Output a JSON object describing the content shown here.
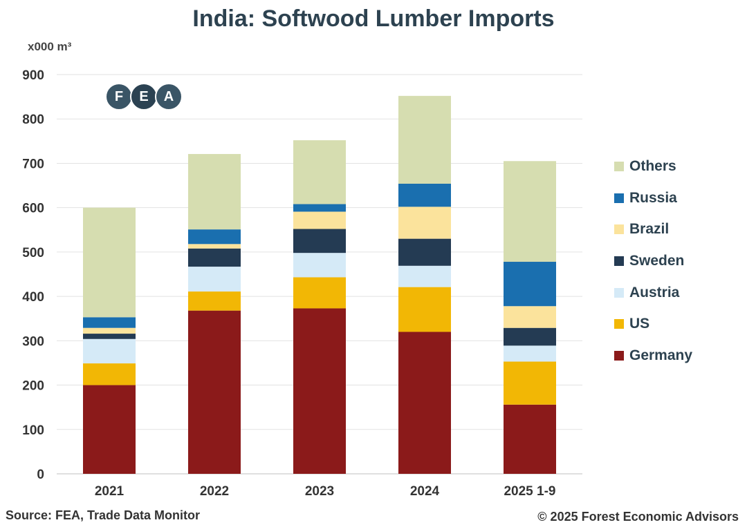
{
  "header": {
    "title": "India: Softwood Lumber Imports",
    "unit": "x000 m³"
  },
  "logo": {
    "letters": [
      "F",
      "E",
      "A"
    ]
  },
  "footer": {
    "source": "Source: FEA, Trade Data Monitor",
    "copyright": "© 2025 Forest Economic Advisors"
  },
  "chart_data": {
    "type": "bar",
    "stacked": true,
    "title": "India: Softwood Lumber Imports",
    "ylabel": "x000 m³",
    "ylim": [
      0,
      900
    ],
    "yticks": [
      0,
      100,
      200,
      300,
      400,
      500,
      600,
      700,
      800,
      900
    ],
    "grid": true,
    "legend": "right",
    "categories": [
      "2021",
      "2022",
      "2023",
      "2024",
      "2025 1-9"
    ],
    "series": [
      {
        "name": "Germany",
        "color": "#8b1a1a",
        "values": [
          200,
          368,
          373,
          320,
          156
        ]
      },
      {
        "name": "US",
        "color": "#f2b705",
        "values": [
          49,
          43,
          70,
          101,
          97
        ]
      },
      {
        "name": "Austria",
        "color": "#d5eaf7",
        "values": [
          55,
          56,
          55,
          48,
          36
        ]
      },
      {
        "name": "Sweden",
        "color": "#243b53",
        "values": [
          12,
          41,
          54,
          61,
          40
        ]
      },
      {
        "name": "Brazil",
        "color": "#fbe39c",
        "values": [
          13,
          10,
          39,
          72,
          49
        ]
      },
      {
        "name": "Russia",
        "color": "#1a6faf",
        "values": [
          24,
          33,
          17,
          52,
          100
        ]
      },
      {
        "name": "Others",
        "color": "#d6ddb0",
        "values": [
          247,
          170,
          144,
          198,
          227
        ]
      }
    ],
    "legend_order": [
      "Others",
      "Russia",
      "Brazil",
      "Sweden",
      "Austria",
      "US",
      "Germany"
    ]
  }
}
